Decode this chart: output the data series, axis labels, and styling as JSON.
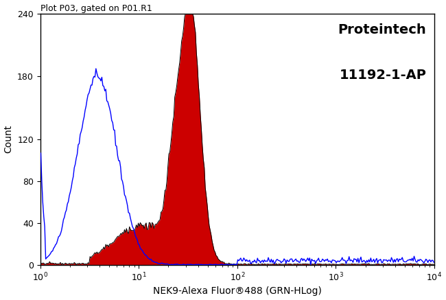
{
  "title": "Plot P03, gated on P01.R1",
  "xlabel": "NEK9-Alexa Fluor®488 (GRN-HLog)",
  "ylabel": "Count",
  "brand_line1": "Proteintech",
  "brand_line2": "11192-1-AP",
  "xlim": [
    1,
    10000
  ],
  "ylim": [
    0,
    240
  ],
  "yticks": [
    0,
    40,
    80,
    120,
    180,
    240
  ],
  "blue_color": "#0000ff",
  "red_color": "#cc0000",
  "black_color": "#000000",
  "bg_color": "#ffffff",
  "figsize": [
    6.5,
    4.37
  ],
  "dpi": 100
}
